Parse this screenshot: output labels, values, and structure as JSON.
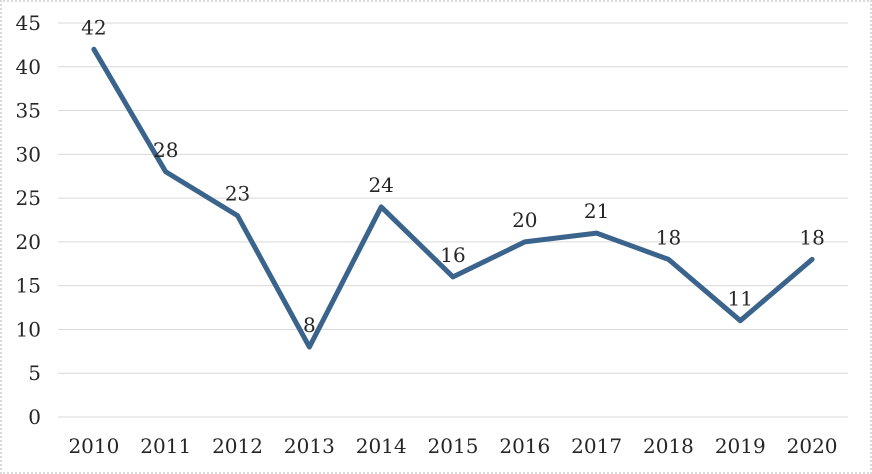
{
  "chart_data": {
    "type": "line",
    "title": "",
    "xlabel": "",
    "ylabel": "",
    "categories": [
      "2010",
      "2011",
      "2012",
      "2013",
      "2014",
      "2015",
      "2016",
      "2017",
      "2018",
      "2019",
      "2020"
    ],
    "series": [
      {
        "name": "",
        "values": [
          42,
          28,
          23,
          8,
          24,
          16,
          20,
          21,
          18,
          11,
          18
        ]
      }
    ],
    "data_labels": [
      42,
      28,
      23,
      8,
      24,
      16,
      20,
      21,
      18,
      11,
      18
    ],
    "ylim": [
      0,
      45
    ],
    "yticks": [
      0,
      5,
      10,
      15,
      20,
      25,
      30,
      35,
      40,
      45
    ],
    "grid": true,
    "legend": false,
    "markers": false
  },
  "colors": {
    "line": "#3a648c",
    "gridline": "#d9d9d9",
    "chart_border": "#d9d9d9",
    "text": "#262626",
    "background": "#ffffff"
  }
}
